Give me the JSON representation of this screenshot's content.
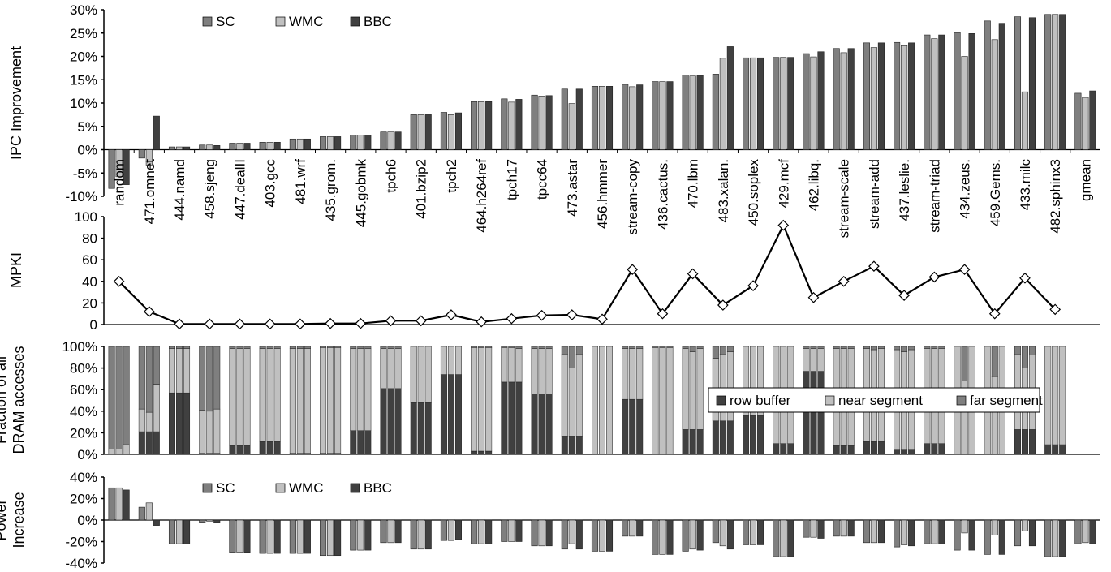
{
  "colors": {
    "sc": "#7f7f7f",
    "wmc": "#c0c0c0",
    "bbc": "#404040",
    "row_buffer": "#404040",
    "near_segment": "#c0c0c0",
    "far_segment": "#7f7f7f",
    "line": "#000000",
    "marker_fill": "#ffffff"
  },
  "chart_data": [
    {
      "type": "bar",
      "ylabel": "IPC Improvement",
      "ylim": [
        -10,
        30
      ],
      "yticks": [
        -10,
        -5,
        0,
        5,
        10,
        15,
        20,
        25,
        30
      ],
      "tick_suffix": "%",
      "legend_position": "top-left",
      "categories": [
        "random",
        "471.omnet",
        "444.namd",
        "458.sjeng",
        "447.dealII",
        "403.gcc",
        "481.wrf",
        "435.grom.",
        "445.gobmk",
        "tpch6",
        "401.bzip2",
        "tpch2",
        "464.h264ref",
        "tpch17",
        "tpcc64",
        "473.astar",
        "456.hmmer",
        "stream-copy",
        "436.cactus.",
        "470.lbm",
        "483.xalan.",
        "450.soplex",
        "429.mcf",
        "462.libq.",
        "stream-scale",
        "stream-add",
        "437.leslie.",
        "stream-triad",
        "434.zeus.",
        "459.Gems.",
        "433.milc",
        "482.sphinx3",
        "gmean"
      ],
      "series": [
        {
          "name": "SC",
          "values": [
            -8.3,
            -1.8,
            0.6,
            1.0,
            1.4,
            1.6,
            2.3,
            2.8,
            3.1,
            3.8,
            7.5,
            8.0,
            10.3,
            10.9,
            11.7,
            13.0,
            13.6,
            14.0,
            14.6,
            16.0,
            16.2,
            19.7,
            19.8,
            20.6,
            21.7,
            22.9,
            23.0,
            24.6,
            25.1,
            27.6,
            28.5,
            29.0,
            12.1
          ]
        },
        {
          "name": "WMC",
          "values": [
            -5.8,
            -3.3,
            0.6,
            1.0,
            1.4,
            1.6,
            2.3,
            2.8,
            3.1,
            3.8,
            7.5,
            7.5,
            10.3,
            10.2,
            11.5,
            9.9,
            13.6,
            13.5,
            14.6,
            15.8,
            19.6,
            19.7,
            19.8,
            19.9,
            20.8,
            21.9,
            22.3,
            23.8,
            20.0,
            23.6,
            12.4,
            29.0,
            11.2
          ]
        },
        {
          "name": "BBC",
          "values": [
            -7.5,
            7.2,
            0.6,
            0.9,
            1.4,
            1.6,
            2.3,
            2.8,
            3.1,
            3.8,
            7.5,
            7.9,
            10.3,
            10.8,
            11.6,
            13.0,
            13.6,
            13.9,
            14.6,
            15.9,
            22.1,
            19.7,
            19.8,
            21.0,
            21.7,
            22.9,
            22.9,
            24.6,
            24.9,
            27.1,
            28.3,
            29.0,
            12.6
          ]
        }
      ]
    },
    {
      "type": "line",
      "ylabel": "MPKI",
      "ylim": [
        0,
        100
      ],
      "yticks": [
        0,
        20,
        40,
        60,
        80,
        100
      ],
      "x": [
        "random",
        "471.omnet",
        "444.namd",
        "458.sjeng",
        "447.dealII",
        "403.gcc",
        "481.wrf",
        "435.grom.",
        "445.gobmk",
        "tpch6",
        "401.bzip2",
        "tpch2",
        "464.h264ref",
        "tpch17",
        "tpcc64",
        "473.astar",
        "456.hmmer",
        "stream-copy",
        "436.cactus.",
        "470.lbm",
        "483.xalan.",
        "450.soplex",
        "429.mcf",
        "462.libq.",
        "stream-scale",
        "stream-add",
        "437.leslie.",
        "stream-triad",
        "434.zeus.",
        "459.Gems.",
        "433.milc",
        "482.sphinx3"
      ],
      "values": [
        40,
        12,
        0.5,
        0.5,
        0.5,
        0.5,
        0.5,
        1,
        1,
        3.5,
        3.5,
        9,
        2.5,
        5.5,
        8.5,
        9,
        5,
        51,
        10,
        47,
        18,
        36,
        92,
        25,
        40,
        54,
        27,
        44,
        51,
        10,
        43,
        14
      ]
    },
    {
      "type": "bar",
      "stacked": true,
      "ylabel_lines": [
        "Fraction of all",
        "DRAM accesses"
      ],
      "ylim": [
        0,
        100
      ],
      "yticks": [
        0,
        20,
        40,
        60,
        80,
        100
      ],
      "tick_suffix": "%",
      "legend_position": "center-right",
      "legend": [
        "row buffer",
        "near segment",
        "far segment"
      ],
      "categories": [
        "random",
        "471.omnet",
        "444.namd",
        "458.sjeng",
        "447.dealII",
        "403.gcc",
        "481.wrf",
        "435.grom.",
        "445.gobmk",
        "tpch6",
        "401.bzip2",
        "tpch2",
        "464.h264ref",
        "tpch17",
        "tpcc64",
        "473.astar",
        "456.hmmer",
        "stream-copy",
        "436.cactus.",
        "470.lbm",
        "483.xalan.",
        "450.soplex",
        "429.mcf",
        "462.libq.",
        "stream-scale",
        "stream-add",
        "437.leslie.",
        "stream-triad",
        "434.zeus.",
        "459.Gems.",
        "433.milc",
        "482.sphinx3"
      ],
      "groups": [
        {
          "variants": [
            [
              0,
              5,
              95
            ],
            [
              0,
              5,
              95
            ],
            [
              0,
              9,
              91
            ]
          ]
        },
        {
          "variants": [
            [
              21,
              21,
              58
            ],
            [
              21,
              18,
              61
            ],
            [
              21,
              44,
              35
            ]
          ]
        },
        {
          "variants": [
            [
              57,
              41,
              2
            ],
            [
              57,
              41,
              2
            ],
            [
              57,
              41,
              2
            ]
          ]
        },
        {
          "variants": [
            [
              1,
              40,
              59
            ],
            [
              1,
              39,
              60
            ],
            [
              1,
              41,
              58
            ]
          ]
        },
        {
          "variants": [
            [
              8,
              90,
              2
            ],
            [
              8,
              90,
              2
            ],
            [
              8,
              90,
              2
            ]
          ]
        },
        {
          "variants": [
            [
              12,
              86,
              2
            ],
            [
              12,
              86,
              2
            ],
            [
              12,
              86,
              2
            ]
          ]
        },
        {
          "variants": [
            [
              1,
              97,
              2
            ],
            [
              1,
              97,
              2
            ],
            [
              1,
              97,
              2
            ]
          ]
        },
        {
          "variants": [
            [
              1,
              98,
              1
            ],
            [
              1,
              98,
              1
            ],
            [
              1,
              98,
              1
            ]
          ]
        },
        {
          "variants": [
            [
              22,
              76,
              2
            ],
            [
              22,
              76,
              2
            ],
            [
              22,
              76,
              2
            ]
          ]
        },
        {
          "variants": [
            [
              61,
              37,
              2
            ],
            [
              61,
              37,
              2
            ],
            [
              61,
              37,
              2
            ]
          ]
        },
        {
          "variants": [
            [
              48,
              52,
              0
            ],
            [
              48,
              52,
              0
            ],
            [
              48,
              52,
              0
            ]
          ]
        },
        {
          "variants": [
            [
              74,
              26,
              0
            ],
            [
              74,
              26,
              0
            ],
            [
              74,
              26,
              0
            ]
          ]
        },
        {
          "variants": [
            [
              3,
              96,
              1
            ],
            [
              3,
              96,
              1
            ],
            [
              3,
              96,
              1
            ]
          ]
        },
        {
          "variants": [
            [
              67,
              32,
              1
            ],
            [
              67,
              32,
              1
            ],
            [
              67,
              31,
              2
            ]
          ]
        },
        {
          "variants": [
            [
              56,
              42,
              2
            ],
            [
              56,
              42,
              2
            ],
            [
              56,
              42,
              2
            ]
          ]
        },
        {
          "variants": [
            [
              17,
              76,
              7
            ],
            [
              17,
              63,
              20
            ],
            [
              17,
              76,
              7
            ]
          ]
        },
        {
          "variants": [
            [
              0,
              100,
              0
            ],
            [
              0,
              100,
              0
            ],
            [
              0,
              100,
              0
            ]
          ]
        },
        {
          "variants": [
            [
              51,
              47,
              2
            ],
            [
              51,
              47,
              2
            ],
            [
              51,
              47,
              2
            ]
          ]
        },
        {
          "variants": [
            [
              0,
              99,
              1
            ],
            [
              0,
              99,
              1
            ],
            [
              0,
              99,
              1
            ]
          ]
        },
        {
          "variants": [
            [
              23,
              75,
              2
            ],
            [
              23,
              72,
              5
            ],
            [
              23,
              75,
              2
            ]
          ]
        },
        {
          "variants": [
            [
              31,
              58,
              11
            ],
            [
              31,
              62,
              7
            ],
            [
              31,
              64,
              5
            ]
          ]
        },
        {
          "variants": [
            [
              36,
              64,
              0
            ],
            [
              36,
              64,
              0
            ],
            [
              36,
              64,
              0
            ]
          ]
        },
        {
          "variants": [
            [
              10,
              90,
              0
            ],
            [
              10,
              90,
              0
            ],
            [
              10,
              90,
              0
            ]
          ]
        },
        {
          "variants": [
            [
              77,
              21,
              2
            ],
            [
              77,
              21,
              2
            ],
            [
              77,
              21,
              2
            ]
          ]
        },
        {
          "variants": [
            [
              8,
              90,
              2
            ],
            [
              8,
              90,
              2
            ],
            [
              8,
              90,
              2
            ]
          ]
        },
        {
          "variants": [
            [
              12,
              86,
              2
            ],
            [
              12,
              85,
              3
            ],
            [
              12,
              86,
              2
            ]
          ]
        },
        {
          "variants": [
            [
              4,
              93,
              3
            ],
            [
              4,
              91,
              5
            ],
            [
              4,
              93,
              3
            ]
          ]
        },
        {
          "variants": [
            [
              10,
              88,
              2
            ],
            [
              10,
              88,
              2
            ],
            [
              10,
              88,
              2
            ]
          ]
        },
        {
          "variants": [
            [
              0,
              100,
              0
            ],
            [
              0,
              68,
              32
            ],
            [
              0,
              100,
              0
            ]
          ]
        },
        {
          "variants": [
            [
              0,
              100,
              0
            ],
            [
              0,
              72,
              28
            ],
            [
              0,
              100,
              0
            ]
          ]
        },
        {
          "variants": [
            [
              23,
              70,
              7
            ],
            [
              23,
              57,
              20
            ],
            [
              23,
              69,
              8
            ]
          ]
        },
        {
          "variants": [
            [
              9,
              91,
              0
            ],
            [
              9,
              91,
              0
            ],
            [
              9,
              91,
              0
            ]
          ]
        }
      ]
    },
    {
      "type": "bar",
      "ylabel_lines": [
        "Power",
        "Increase"
      ],
      "ylim": [
        -40,
        40
      ],
      "yticks": [
        -40,
        -20,
        0,
        20,
        40
      ],
      "tick_suffix": "%",
      "legend_position": "top-left",
      "categories": [
        "random",
        "471.omnet",
        "444.namd",
        "458.sjeng",
        "447.dealII",
        "403.gcc",
        "481.wrf",
        "435.grom.",
        "445.gobmk",
        "tpch6",
        "401.bzip2",
        "tpch2",
        "464.h264ref",
        "tpch17",
        "tpcc64",
        "473.astar",
        "456.hmmer",
        "stream-copy",
        "436.cactus.",
        "470.lbm",
        "483.xalan.",
        "450.soplex",
        "429.mcf",
        "462.libq.",
        "stream-scale",
        "stream-add",
        "437.leslie.",
        "stream-triad",
        "434.zeus.",
        "459.Gems.",
        "433.milc",
        "482.sphinx3",
        "gmean"
      ],
      "series": [
        {
          "name": "SC",
          "values": [
            30,
            12,
            -22,
            -2,
            -30,
            -31,
            -31,
            -33,
            -28,
            -21,
            -27,
            -19,
            -22,
            -20,
            -24,
            -27,
            -29,
            -15,
            -32,
            -29,
            -21,
            -23,
            -34,
            -16,
            -15,
            -21,
            -25,
            -22,
            -28,
            -32,
            -24,
            -34,
            -22
          ]
        },
        {
          "name": "WMC",
          "values": [
            30,
            16,
            -22,
            -1,
            -30,
            -31,
            -31,
            -33,
            -28,
            -21,
            -27,
            -19,
            -22,
            -20,
            -24,
            -22,
            -29,
            -15,
            -32,
            -27,
            -24,
            -23,
            -34,
            -16,
            -15,
            -21,
            -23,
            -22,
            -12,
            -14,
            -10,
            -34,
            -21
          ]
        },
        {
          "name": "BBC",
          "values": [
            28,
            -5,
            -22,
            -2,
            -30,
            -31,
            -31,
            -33,
            -28,
            -21,
            -27,
            -18,
            -22,
            -20,
            -24,
            -27,
            -29,
            -15,
            -32,
            -28,
            -27,
            -23,
            -34,
            -17,
            -15,
            -21,
            -24,
            -22,
            -28,
            -32,
            -24,
            -34,
            -22
          ]
        }
      ]
    }
  ]
}
